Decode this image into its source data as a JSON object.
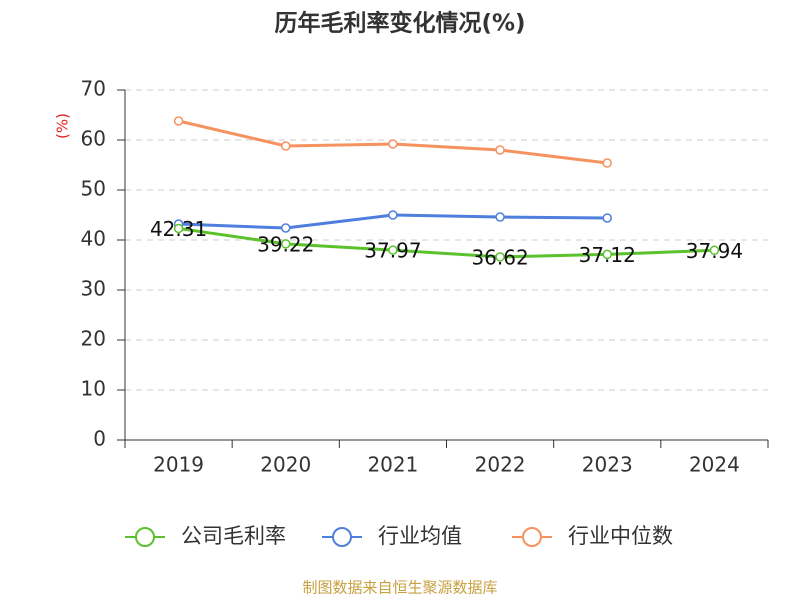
{
  "chart_data": {
    "type": "line",
    "title": "历年毛利率变化情况(%)",
    "y_label": "(%)",
    "source": "制图数据来自恒生聚源数据库",
    "categories": [
      "2019",
      "2020",
      "2021",
      "2022",
      "2023",
      "2024"
    ],
    "series": [
      {
        "name": "公司毛利率",
        "color": "#5bc22e",
        "values": [
          42.31,
          39.22,
          37.97,
          36.62,
          37.12,
          37.94
        ],
        "show_labels": true
      },
      {
        "name": "行业均值",
        "color": "#4e7fdc",
        "values": [
          43.2,
          42.4,
          45.0,
          44.6,
          44.4,
          null
        ]
      },
      {
        "name": "行业中位数",
        "color": "#f59260",
        "values": [
          63.8,
          58.8,
          59.2,
          58.0,
          55.4,
          null
        ]
      }
    ],
    "ylim": [
      0,
      70
    ],
    "yticks": [
      0,
      10,
      20,
      30,
      40,
      50,
      60,
      70
    ],
    "grid": true
  }
}
